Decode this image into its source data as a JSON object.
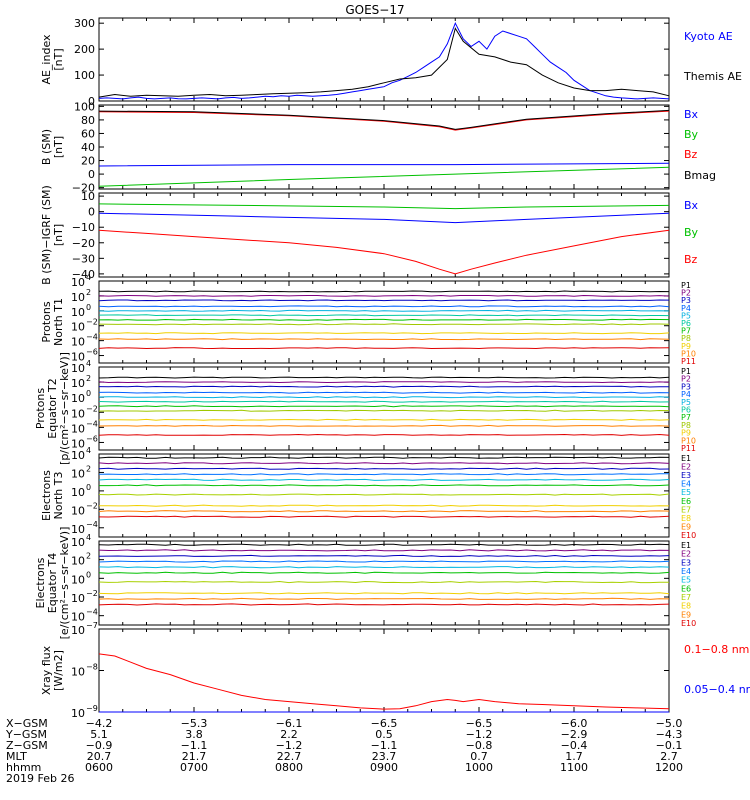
{
  "title": "GOES−17",
  "chart_data": [
    {
      "type": "line",
      "ylabel": [
        "AE_index",
        "[nT]"
      ],
      "ylim": [
        0,
        320
      ],
      "yticks": [
        "0",
        "100",
        "200",
        "300"
      ],
      "series": [
        {
          "name": "Kyoto AE",
          "color": "#0000ff",
          "x": [
            0,
            5,
            10,
            15,
            20,
            25,
            30,
            35,
            40,
            45,
            50,
            55,
            60,
            65,
            70,
            75,
            80,
            85,
            90,
            95,
            100,
            105,
            110,
            115,
            120,
            125,
            130,
            135,
            140,
            145,
            150,
            155,
            160,
            165,
            170,
            175,
            180,
            185,
            190,
            195,
            200,
            205,
            210,
            215,
            220,
            225,
            230,
            235,
            240,
            245,
            250,
            255,
            260,
            265,
            270,
            275,
            280,
            285,
            290,
            295,
            300,
            305,
            310,
            315,
            320,
            325,
            330,
            335,
            340,
            345,
            350,
            355,
            360
          ],
          "y": [
            10,
            12,
            10,
            8,
            12,
            15,
            10,
            8,
            10,
            12,
            9,
            8,
            10,
            12,
            10,
            8,
            12,
            14,
            10,
            12,
            15,
            18,
            16,
            20,
            18,
            22,
            20,
            18,
            20,
            22,
            25,
            30,
            35,
            40,
            45,
            50,
            55,
            70,
            80,
            95,
            110,
            130,
            150,
            170,
            220,
            300,
            240,
            210,
            230,
            200,
            250,
            270,
            260,
            250,
            240,
            210,
            180,
            150,
            130,
            110,
            80,
            60,
            40,
            30,
            20,
            15,
            12,
            10,
            8,
            10,
            12,
            10,
            8
          ]
        },
        {
          "name": "Themis AE",
          "color": "#000000",
          "x": [
            0,
            10,
            20,
            30,
            40,
            50,
            60,
            70,
            80,
            90,
            100,
            110,
            120,
            130,
            140,
            150,
            160,
            170,
            180,
            190,
            200,
            210,
            220,
            225,
            230,
            240,
            250,
            260,
            270,
            280,
            290,
            300,
            310,
            320,
            330,
            340,
            350,
            360
          ],
          "y": [
            15,
            25,
            18,
            22,
            20,
            18,
            22,
            25,
            20,
            22,
            25,
            28,
            30,
            32,
            35,
            40,
            45,
            55,
            70,
            85,
            90,
            100,
            160,
            280,
            230,
            180,
            170,
            150,
            140,
            100,
            70,
            50,
            40,
            40,
            45,
            40,
            35,
            20
          ]
        }
      ],
      "legend": [
        "Kyoto AE",
        "Themis AE"
      ]
    },
    {
      "type": "line",
      "ylabel": [
        "B (SM)",
        "[nT]"
      ],
      "ylim": [
        -22,
        102
      ],
      "yticks": [
        "100",
        "80",
        "60",
        "40",
        "20",
        "0",
        "−20"
      ],
      "series": [
        {
          "name": "Bx",
          "color": "#0000ff",
          "x": [
            0,
            120,
            225,
            360
          ],
          "y": [
            12,
            14,
            14,
            16
          ]
        },
        {
          "name": "By",
          "color": "#00c000",
          "x": [
            0,
            120,
            225,
            360
          ],
          "y": [
            -18,
            -8,
            0,
            10
          ]
        },
        {
          "name": "Bz",
          "color": "#ff0000",
          "x": [
            0,
            60,
            120,
            180,
            215,
            225,
            235,
            270,
            320,
            360
          ],
          "y": [
            92,
            91,
            86,
            78,
            70,
            65,
            68,
            80,
            88,
            93
          ]
        },
        {
          "name": "Bmag",
          "color": "#000000",
          "x": [
            0,
            60,
            120,
            180,
            215,
            225,
            235,
            270,
            320,
            360
          ],
          "y": [
            93,
            92,
            87,
            79,
            71,
            66,
            69,
            81,
            89,
            94
          ]
        }
      ],
      "legend": [
        "Bx",
        "By",
        "Bz",
        "Bmag"
      ]
    },
    {
      "type": "line",
      "ylabel": [
        "B (SM)−IGRF (SM)",
        "[nT]"
      ],
      "ylim": [
        -42,
        12
      ],
      "yticks": [
        "10",
        "0",
        "−10",
        "−20",
        "−30",
        "−40"
      ],
      "series": [
        {
          "name": "Bx",
          "color": "#0000ff",
          "x": [
            0,
            90,
            180,
            225,
            270,
            360
          ],
          "y": [
            -1,
            -3,
            -5,
            -7,
            -5,
            -1
          ]
        },
        {
          "name": "By",
          "color": "#00c000",
          "x": [
            0,
            90,
            180,
            225,
            270,
            360
          ],
          "y": [
            5,
            4,
            3,
            2,
            3,
            4
          ]
        },
        {
          "name": "Bz",
          "color": "#ff0000",
          "x": [
            0,
            30,
            60,
            90,
            120,
            150,
            180,
            200,
            215,
            225,
            235,
            250,
            270,
            300,
            330,
            360
          ],
          "y": [
            -12,
            -14,
            -16,
            -18,
            -20,
            -23,
            -27,
            -32,
            -37,
            -40,
            -37,
            -33,
            -28,
            -22,
            -16,
            -12
          ]
        }
      ],
      "legend": [
        "Bx",
        "By",
        "Bz"
      ]
    },
    {
      "type": "line",
      "ylabel": [
        "Protons",
        "North T1"
      ],
      "yscale": "log",
      "ylim": [
        -7,
        4
      ],
      "yticks": [
        {
          "b": "10",
          "e": "4"
        },
        {
          "b": "10",
          "e": "2"
        },
        {
          "b": "10",
          "e": "0"
        },
        {
          "b": "10",
          "e": "−2"
        },
        {
          "b": "10",
          "e": "−4"
        },
        {
          "b": "10",
          "e": "−6"
        }
      ],
      "levels": [
        2.6,
        2.0,
        1.4,
        0.6,
        0.0,
        -0.6,
        -1.2,
        -1.8,
        -3.0,
        -3.8,
        -5.0
      ],
      "legend": [
        "P1",
        "P2",
        "P3",
        "P4",
        "P5",
        "P6",
        "P7",
        "P8",
        "P9",
        "P10",
        "P11"
      ]
    },
    {
      "type": "line",
      "ylabel": [
        "Protons",
        "Equator T2",
        "[p/(cm²−s−sr−keV)]"
      ],
      "yscale": "log",
      "ylim": [
        -7,
        4
      ],
      "yticks": [
        {
          "b": "10",
          "e": "4"
        },
        {
          "b": "10",
          "e": "2"
        },
        {
          "b": "10",
          "e": "0"
        },
        {
          "b": "10",
          "e": "−2"
        },
        {
          "b": "10",
          "e": "−4"
        },
        {
          "b": "10",
          "e": "−6"
        }
      ],
      "levels": [
        2.6,
        2.0,
        1.4,
        0.6,
        0.0,
        -0.6,
        -1.2,
        -1.8,
        -3.0,
        -3.8,
        -5.0
      ],
      "legend": [
        "P1",
        "P2",
        "P3",
        "P4",
        "P5",
        "P6",
        "P7",
        "P8",
        "P9",
        "P10",
        "P11"
      ]
    },
    {
      "type": "line",
      "ylabel": [
        "Electrons",
        "North T3"
      ],
      "yscale": "log",
      "ylim": [
        -5,
        4
      ],
      "yticks": [
        {
          "b": "10",
          "e": "4"
        },
        {
          "b": "10",
          "e": "2"
        },
        {
          "b": "10",
          "e": "0"
        },
        {
          "b": "10",
          "e": "−2"
        },
        {
          "b": "10",
          "e": "−4"
        }
      ],
      "levels": [
        3.6,
        3.0,
        2.4,
        1.8,
        1.2,
        0.6,
        -0.4,
        -1.6,
        -2.2,
        -2.8
      ],
      "legend": [
        "E1",
        "E2",
        "E3",
        "E4",
        "E5",
        "E6",
        "E7",
        "E8",
        "E9",
        "E10"
      ]
    },
    {
      "type": "line",
      "ylabel": [
        "Electrons",
        "Equator T4",
        "[e/(cm²−s−sr−keV)]"
      ],
      "yscale": "log",
      "ylim": [
        -5,
        4
      ],
      "yticks": [
        {
          "b": "10",
          "e": "4"
        },
        {
          "b": "10",
          "e": "2"
        },
        {
          "b": "10",
          "e": "0"
        },
        {
          "b": "10",
          "e": "−2"
        },
        {
          "b": "10",
          "e": "−4"
        }
      ],
      "levels": [
        3.6,
        3.0,
        2.4,
        1.8,
        1.2,
        0.6,
        -0.4,
        -1.6,
        -2.2,
        -2.8
      ],
      "legend": [
        "E1",
        "E2",
        "E3",
        "E4",
        "E5",
        "E6",
        "E7",
        "E8",
        "E9",
        "E10"
      ]
    },
    {
      "type": "line",
      "ylabel": [
        "Xray flux",
        "[W/m2]"
      ],
      "yscale": "log",
      "ylim": [
        -9,
        -7
      ],
      "yticks": [
        {
          "b": "10",
          "e": "−7"
        },
        {
          "b": "10",
          "e": "−8"
        },
        {
          "b": "10",
          "e": "−9"
        }
      ],
      "series": [
        {
          "name": "0.1−0.8 nm",
          "color": "#ff0000",
          "x": [
            0,
            10,
            20,
            30,
            45,
            60,
            75,
            90,
            105,
            120,
            135,
            150,
            165,
            180,
            190,
            200,
            210,
            220,
            225,
            230,
            240,
            250,
            265,
            280,
            300,
            320,
            340,
            360
          ],
          "y": [
            -7.6,
            -7.65,
            -7.8,
            -7.95,
            -8.1,
            -8.3,
            -8.45,
            -8.6,
            -8.7,
            -8.75,
            -8.8,
            -8.85,
            -8.9,
            -8.93,
            -8.92,
            -8.85,
            -8.75,
            -8.7,
            -8.72,
            -8.75,
            -8.7,
            -8.75,
            -8.8,
            -8.82,
            -8.85,
            -8.88,
            -8.9,
            -8.92
          ]
        },
        {
          "name": "0.05−0.4 nm",
          "color": "#0000ff",
          "x": [
            0,
            360
          ],
          "y": [
            -9.0,
            -9.0
          ]
        }
      ],
      "legend": [
        "0.1−0.8 nm",
        "0.05−0.4 nm"
      ]
    }
  ],
  "x_axis": {
    "row_labels": [
      "X−GSM",
      "Y−GSM",
      "Z−GSM",
      "MLT",
      "hhmm"
    ],
    "columns": [
      [
        "−4.2",
        "5.1",
        "−0.9",
        "20.7",
        "0600"
      ],
      [
        "−5.3",
        "3.8",
        "−1.1",
        "21.7",
        "0700"
      ],
      [
        "−6.1",
        "2.2",
        "−1.2",
        "22.7",
        "0800"
      ],
      [
        "−6.5",
        "0.5",
        "−1.1",
        "23.7",
        "0900"
      ],
      [
        "−6.5",
        "−1.2",
        "−0.8",
        "0.7",
        "1000"
      ],
      [
        "−6.0",
        "−2.9",
        "−0.4",
        "1.7",
        "1100"
      ],
      [
        "−5.0",
        "−4.3",
        "−0.1",
        "2.7",
        "1200"
      ]
    ],
    "xlim": [
      0,
      360
    ],
    "date": "2019 Feb 26"
  },
  "colors": {
    "proton_channels": [
      "#000000",
      "#800080",
      "#0000c0",
      "#0060ff",
      "#00b0e0",
      "#00c8a0",
      "#00c000",
      "#a0c800",
      "#f0d000",
      "#ff8000",
      "#e00000"
    ],
    "electron_channels": [
      "#000000",
      "#800080",
      "#0000c0",
      "#0070ff",
      "#00b8e0",
      "#00c000",
      "#a8d000",
      "#f0d000",
      "#ff8000",
      "#e00000"
    ]
  }
}
